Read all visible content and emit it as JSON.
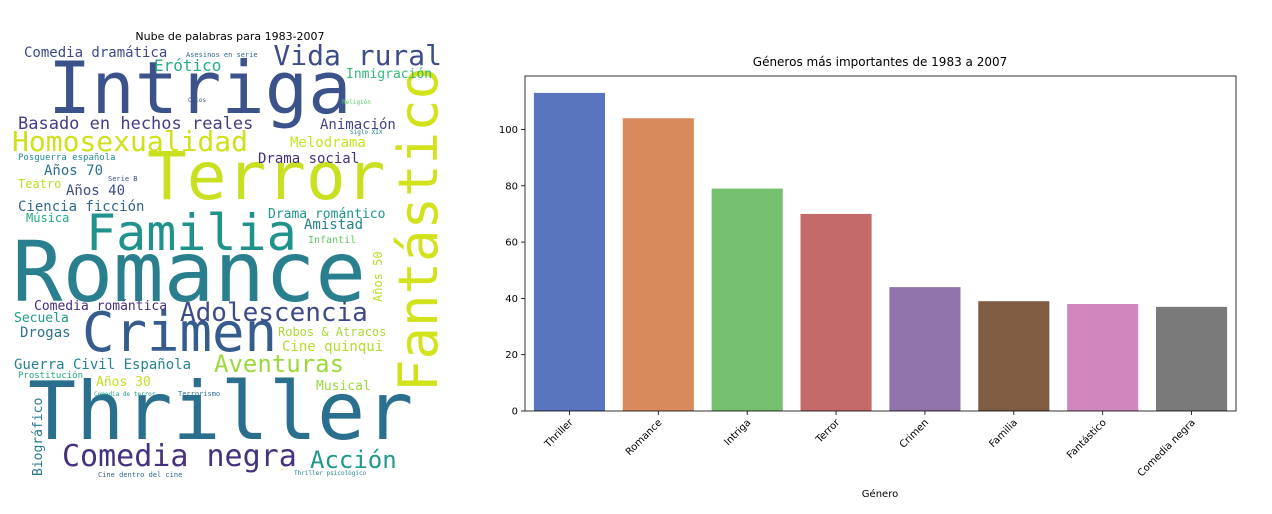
{
  "wordcloud": {
    "title": "Nube de palabras para 1983-2007",
    "words": [
      {
        "text": "Thriller",
        "color": "#2a6f8e"
      },
      {
        "text": "Romance",
        "color": "#2a7f8e"
      },
      {
        "text": "Intriga",
        "color": "#3b528b"
      },
      {
        "text": "Terror",
        "color": "#c8e020"
      },
      {
        "text": "Familia",
        "color": "#20928c"
      },
      {
        "text": "Fantástico",
        "color": "#d2e21b"
      },
      {
        "text": "Crimen",
        "color": "#365c8d"
      },
      {
        "text": "Comedia negra",
        "color": "#46317e"
      },
      {
        "text": "Homosexualidad",
        "color": "#d0e11c"
      },
      {
        "text": "Vida rural",
        "color": "#3d4d8a"
      },
      {
        "text": "Adolescencia",
        "color": "#3e4a89"
      },
      {
        "text": "Aventuras",
        "color": "#9bd93c"
      },
      {
        "text": "Acción",
        "color": "#1f9a8a"
      },
      {
        "text": "Basado en hechos reales",
        "color": "#433e85"
      },
      {
        "text": "Comedia dramática",
        "color": "#3e4989"
      },
      {
        "text": "Erótico",
        "color": "#27ad81"
      },
      {
        "text": "Inmigración",
        "color": "#35b779"
      },
      {
        "text": "Animación",
        "color": "#414487"
      },
      {
        "text": "Melodrama",
        "color": "#cae11f"
      },
      {
        "text": "Drama social",
        "color": "#46307e"
      },
      {
        "text": "Años 70",
        "color": "#2c728e"
      },
      {
        "text": "Años 40",
        "color": "#3e4c8a"
      },
      {
        "text": "Ciencia ficción",
        "color": "#31688e"
      },
      {
        "text": "Música",
        "color": "#22a785"
      },
      {
        "text": "Drama romántico",
        "color": "#1f958b"
      },
      {
        "text": "Amistad",
        "color": "#26828e"
      },
      {
        "text": "Infantil",
        "color": "#5ec962"
      },
      {
        "text": "Años 50",
        "color": "#b5de2b"
      },
      {
        "text": "Teatro",
        "color": "#b8de29"
      },
      {
        "text": "Comedia romántica",
        "color": "#472d7b"
      },
      {
        "text": "Secuela",
        "color": "#1f9e89"
      },
      {
        "text": "Drogas",
        "color": "#2c728e"
      },
      {
        "text": "Robos & Atracos",
        "color": "#a8db34"
      },
      {
        "text": "Cine quinqui",
        "color": "#b2dd2d"
      },
      {
        "text": "Guerra Civil Española",
        "color": "#25848e"
      },
      {
        "text": "Prostitución",
        "color": "#21a685"
      },
      {
        "text": "Años 30",
        "color": "#c2df23"
      },
      {
        "text": "Musical",
        "color": "#9dd93b"
      },
      {
        "text": "Biográfico",
        "color": "#2a788e"
      },
      {
        "text": "Posguerra española",
        "color": "#23898e"
      },
      {
        "text": "Asesinos en serie",
        "color": "#31688e"
      },
      {
        "text": "Celos",
        "color": "#3b528b"
      },
      {
        "text": "Religión",
        "color": "#5ec962"
      },
      {
        "text": "Siglo XIX",
        "color": "#26828e"
      },
      {
        "text": "Serie B",
        "color": "#3b528b"
      },
      {
        "text": "Comedia de terror",
        "color": "#1f9e89"
      },
      {
        "text": "Terrorismo",
        "color": "#2c728e"
      },
      {
        "text": "Cine dentro del cine",
        "color": "#31688e"
      },
      {
        "text": "Thriller psicológico",
        "color": "#26828e"
      },
      {
        "text": "•",
        "color": "#fde725"
      }
    ]
  },
  "chart_data": {
    "type": "bar",
    "title": "Géneros más importantes de 1983 a 2007",
    "xlabel": "Género",
    "ylabel": "",
    "categories": [
      "Thriller",
      "Romance",
      "Intriga",
      "Terror",
      "Crimen",
      "Familia",
      "Fantástico",
      "Comedia negra"
    ],
    "values": [
      113,
      104,
      79,
      70,
      44,
      39,
      38,
      37
    ],
    "colors": [
      "#5875bd",
      "#d88a5c",
      "#74c06f",
      "#c46a6a",
      "#9073ab",
      "#7f5c42",
      "#d087be",
      "#7a7a7a"
    ],
    "ylim": [
      0,
      119
    ],
    "yticks": [
      0,
      20,
      40,
      60,
      80,
      100
    ],
    "grid": false
  }
}
